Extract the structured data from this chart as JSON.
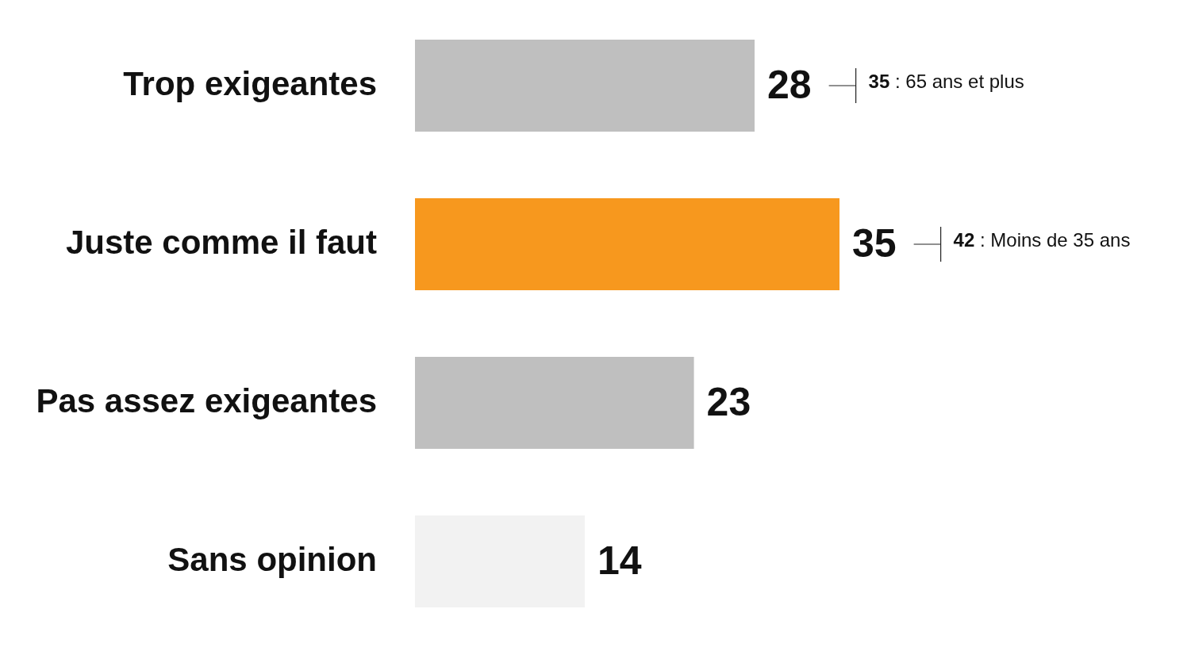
{
  "chart_data": {
    "type": "bar",
    "orientation": "horizontal",
    "categories": [
      "Trop exigeantes",
      "Juste comme il faut",
      "Pas assez exigeantes",
      "Sans opinion"
    ],
    "values": [
      28,
      35,
      23,
      14
    ],
    "colors": [
      "#bfbfbf",
      "#f7981e",
      "#bfbfbf",
      "#f2f2f2"
    ],
    "data_labels": true,
    "annotations": [
      "35 : 65 ans et plus",
      "42 : Moins de 35 ans"
    ]
  }
}
